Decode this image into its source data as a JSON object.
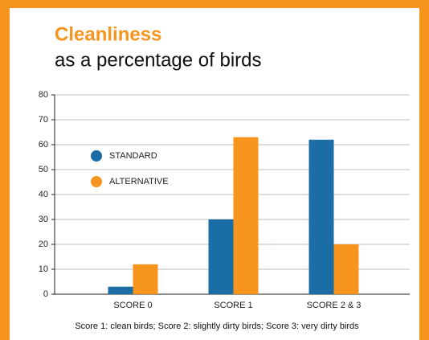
{
  "chart_data": {
    "type": "bar",
    "title": "Cleanliness",
    "subtitle": "as a percentage of birds",
    "categories": [
      "SCORE 0",
      "SCORE 1",
      "SCORE 2 & 3"
    ],
    "series": [
      {
        "name": "STANDARD",
        "color": "#1b6ea5",
        "values": [
          3,
          30,
          62
        ]
      },
      {
        "name": "ALTERNATIVE",
        "color": "#f7941d",
        "values": [
          12,
          63,
          20
        ]
      }
    ],
    "ylim": [
      0,
      80
    ],
    "yticks": [
      0,
      10,
      20,
      30,
      40,
      50,
      60,
      70,
      80
    ],
    "grid": true,
    "legend": "upper left",
    "note": "Score 1: clean birds;   Score 2: slightly dirty birds;   Score 3: very dirty birds"
  }
}
